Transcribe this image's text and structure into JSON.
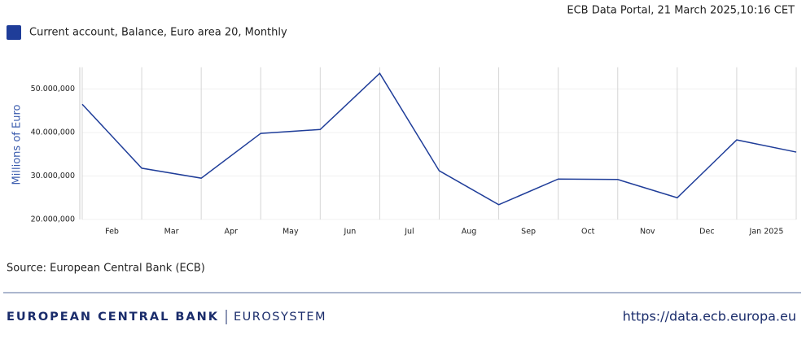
{
  "header": {
    "timestamp": "ECB Data Portal, 21 March 2025,10:16 CET"
  },
  "chart_data": {
    "type": "line",
    "y_label": "Millions of Euro",
    "categories": [
      null,
      "Feb",
      "Mar",
      "Apr",
      "May",
      "Jun",
      "Jul",
      "Aug",
      "Sep",
      "Oct",
      "Nov",
      "Dec",
      "Jan 2025"
    ],
    "series": [
      {
        "name": "Current account, Balance, Euro area 20, Monthly",
        "color": "#1f3d99",
        "values": [
          46500000,
          31800000,
          29500000,
          39800000,
          40700000,
          53600000,
          31200000,
          23400000,
          29300000,
          29200000,
          25000000,
          38300000,
          35500000
        ]
      }
    ],
    "ylim": [
      20000000,
      55000000
    ],
    "yticks": [
      {
        "value": 20000000,
        "label": "20.000,000"
      },
      {
        "value": 30000000,
        "label": "30.000,000"
      },
      {
        "value": 40000000,
        "label": "40.000,000"
      },
      {
        "value": 50000000,
        "label": "50.000,000"
      }
    ],
    "grid": true,
    "legend": "top-left"
  },
  "source": "Source: European Central Bank (ECB)",
  "footer": {
    "brand": "EUROPEAN CENTRAL BANK",
    "system": "EUROSYSTEM",
    "url": "https://data.ecb.europa.eu"
  }
}
